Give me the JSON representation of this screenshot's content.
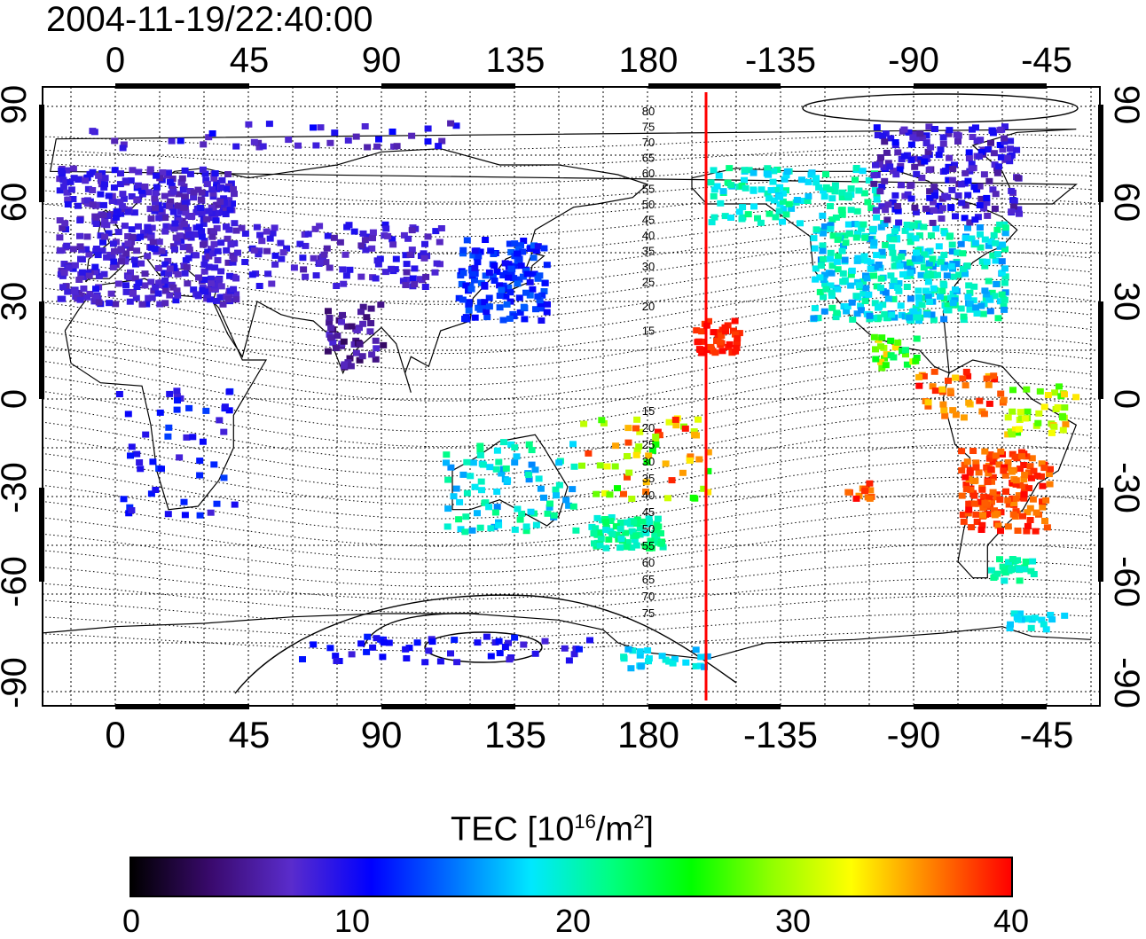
{
  "title": "2004-11-19/22:40:00",
  "x_ticks": [
    "0",
    "45",
    "90",
    "135",
    "180",
    "-135",
    "-90",
    "-45"
  ],
  "y_ticks": [
    "90",
    "60",
    "30",
    "0",
    "-30",
    "-60",
    "-90"
  ],
  "contour_labels_north": [
    "80",
    "75",
    "70",
    "65",
    "60",
    "55",
    "50",
    "45",
    "40",
    "35",
    "30",
    "25",
    "20",
    "15"
  ],
  "contour_labels_south": [
    "15",
    "20",
    "25",
    "30",
    "35",
    "40",
    "45",
    "50",
    "55",
    "60",
    "65",
    "70",
    "75"
  ],
  "colorbar": {
    "title_prefix": "TEC  [10",
    "title_sup1": "16",
    "title_mid": "/m",
    "title_sup2": "2",
    "title_suffix": "]",
    "ticks": [
      "0",
      "10",
      "20",
      "30",
      "40"
    ],
    "colors": [
      "#000000",
      "#3a0a6e",
      "#5a2ccc",
      "#0000ff",
      "#0070ff",
      "#00e8ff",
      "#00ff80",
      "#00ff00",
      "#90ff00",
      "#ffff00",
      "#ff8000",
      "#ff0000"
    ]
  },
  "marker_color": "#ff0000",
  "chart_data": {
    "type": "scatter",
    "x_range": [
      -25,
      328
    ],
    "y_range": [
      -92,
      92
    ],
    "marker_longitude": 200,
    "value_range": [
      0,
      40
    ]
  }
}
